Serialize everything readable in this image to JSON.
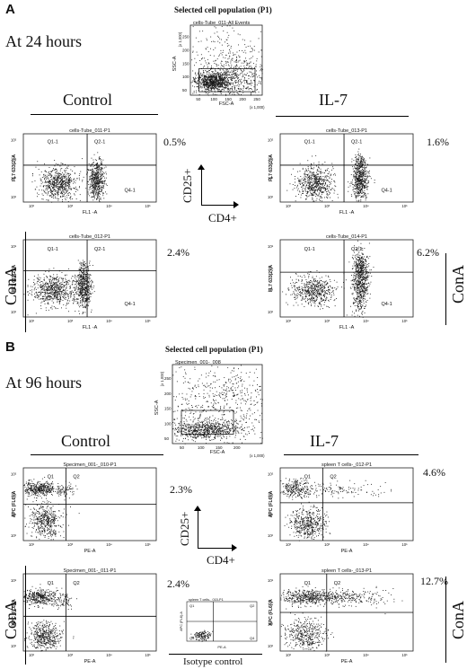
{
  "sectionA": {
    "letter": "A",
    "time_label": "At 24 hours",
    "gate_title": "Selected cell population (P1)",
    "gate_plot": {
      "title": "cells-Tube_011-All Events",
      "ylabel": "SSC-A",
      "yunit": "(x 1,000)",
      "xlabel": "FSC-A",
      "xunit": "(x 1,000)",
      "xticks": [
        "50",
        "100",
        "150",
        "200",
        "250"
      ],
      "yticks": [
        "50",
        "100",
        "150",
        "200",
        "250"
      ],
      "gate": "P1"
    },
    "control_label": "Control",
    "il7_label": "IL-7",
    "cona_label": "ConA",
    "axis_y": "CD25+",
    "axis_x": "CD4+",
    "plots": [
      {
        "title": "cells-Tube_011-P1",
        "ylabel": "FL7 633(2)-A",
        "xlabel": "FL1 -A",
        "q": [
          "Q1-1",
          "Q2-1",
          "Q4-1"
        ],
        "pct": "0.5%"
      },
      {
        "title": "cells-Tube_013-P1",
        "ylabel": "FL7 633(2)-A",
        "xlabel": "FL1 -A",
        "q": [
          "Q1-1",
          "Q2-1",
          "Q4-1"
        ],
        "pct": "1.6%"
      },
      {
        "title": "cells-Tube_012-P1",
        "ylabel": "FL7 633(2)-A",
        "xlabel": "FL1 -A",
        "q": [
          "Q1-1",
          "Q2-1",
          "Q4-1"
        ],
        "pct": "2.4%"
      },
      {
        "title": "cells-Tube_014-P1",
        "ylabel": "FL7 633(2)-A",
        "xlabel": "FL1 -A",
        "q": [
          "Q1-1",
          "Q2-1",
          "Q4-1"
        ],
        "pct": "6.2%"
      }
    ]
  },
  "sectionB": {
    "letter": "B",
    "time_label": "At 96 hours",
    "gate_title": "Selected cell population (P1)",
    "gate_plot": {
      "title": "Specimen_001-_008",
      "ylabel": "SSC-A",
      "yunit": "(x 1,000)",
      "xlabel": "FSC-A",
      "xunit": "(x 1,000)",
      "xticks": [
        "50",
        "100",
        "150",
        "200"
      ],
      "yticks": [
        "50",
        "100",
        "150",
        "200",
        "250"
      ],
      "gate": "P1"
    },
    "control_label": "Control",
    "il7_label": "IL-7",
    "cona_label": "ConA",
    "axis_y": "CD25+",
    "axis_x": "CD4+",
    "isotype_label": "Isotype control",
    "isotype_plot": {
      "title": "spleen T cells-_015-P1",
      "ylabel": "APC (FL6)-A",
      "xlabel": "PE-A",
      "q": [
        "Q1",
        "Q2",
        "Q3",
        "Q4"
      ]
    },
    "plots": [
      {
        "title": "Specimen_001-_010-P1",
        "ylabel": "APC (FL6)-A",
        "xlabel": "PE-A",
        "q": [
          "Q1",
          "Q2",
          "Q4"
        ],
        "pct": "2.3%"
      },
      {
        "title": "spleen T cells-_012-P1",
        "ylabel": "APC (FL6)-A",
        "xlabel": "PE-A",
        "q": [
          "Q1",
          "Q2",
          "Q4"
        ],
        "pct": "4.6%"
      },
      {
        "title": "Specimen_001-_011-P1",
        "ylabel": "APC (FL6)-A",
        "xlabel": "PE-A",
        "q": [
          "Q1",
          "Q2",
          "Q4"
        ],
        "pct": "2.4%"
      },
      {
        "title": "spleen T cells-_013-P1",
        "ylabel": "APC (FL6)-A",
        "xlabel": "PE-A",
        "q": [
          "Q1",
          "Q2",
          "Q4"
        ],
        "pct": "12.7%"
      }
    ]
  }
}
